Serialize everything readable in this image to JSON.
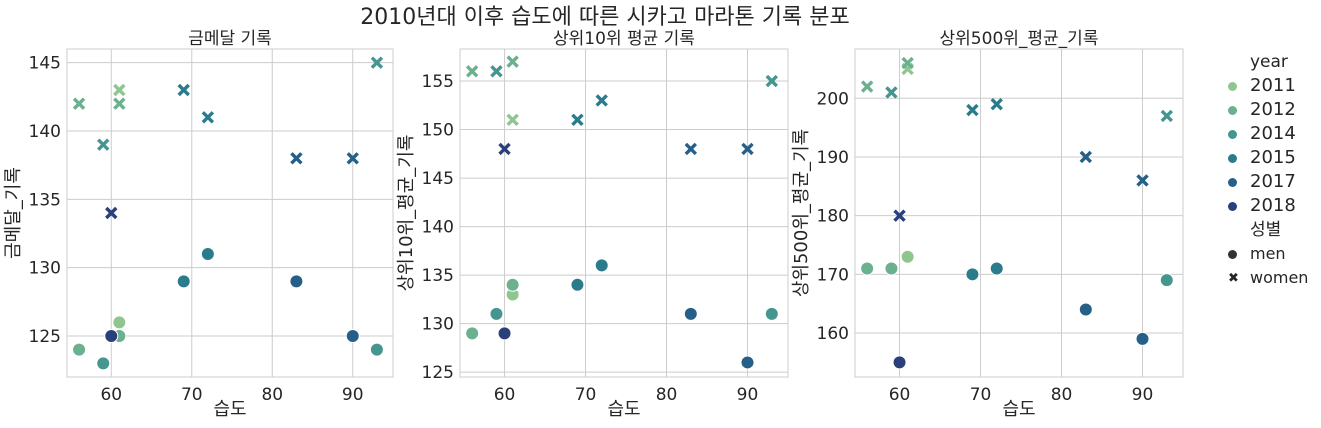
{
  "chart_data": {
    "suptitle": "2010년대 이후 습도에 따른 시카고 마라톤 기록 분포",
    "type": "scatter",
    "hue_title": "year",
    "style_title": "성별",
    "palette": {
      "2011": "#8fc58f",
      "2012": "#6bb08f",
      "2014": "#44968f",
      "2015": "#2a7c8c",
      "2017": "#265f88",
      "2018": "#2b3f7a"
    },
    "years": [
      "2011",
      "2012",
      "2014",
      "2015",
      "2017",
      "2018"
    ],
    "genders": [
      {
        "value": "men",
        "marker": "circle"
      },
      {
        "value": "women",
        "marker": "x"
      }
    ],
    "charts": [
      {
        "title": "금메달 기록",
        "xlabel": "습도",
        "ylabel": "금메달_기록",
        "xlim": [
          54.5,
          95
        ],
        "ylim": [
          122,
          146
        ],
        "xticks": [
          60,
          70,
          80,
          90
        ],
        "yticks": [
          125,
          130,
          135,
          140,
          145
        ],
        "points": [
          {
            "x": 61,
            "y": 126,
            "year": "2011",
            "gender": "men"
          },
          {
            "x": 61,
            "y": 143,
            "year": "2011",
            "gender": "women"
          },
          {
            "x": 56,
            "y": 124,
            "year": "2012",
            "gender": "men"
          },
          {
            "x": 61,
            "y": 125,
            "year": "2012",
            "gender": "men"
          },
          {
            "x": 56,
            "y": 142,
            "year": "2012",
            "gender": "women"
          },
          {
            "x": 61,
            "y": 142,
            "year": "2012",
            "gender": "women"
          },
          {
            "x": 59,
            "y": 123,
            "year": "2014",
            "gender": "men"
          },
          {
            "x": 93,
            "y": 124,
            "year": "2014",
            "gender": "men"
          },
          {
            "x": 59,
            "y": 139,
            "year": "2014",
            "gender": "women"
          },
          {
            "x": 93,
            "y": 145,
            "year": "2014",
            "gender": "women"
          },
          {
            "x": 69,
            "y": 129,
            "year": "2015",
            "gender": "men"
          },
          {
            "x": 72,
            "y": 131,
            "year": "2015",
            "gender": "men"
          },
          {
            "x": 69,
            "y": 143,
            "year": "2015",
            "gender": "women"
          },
          {
            "x": 72,
            "y": 141,
            "year": "2015",
            "gender": "women"
          },
          {
            "x": 83,
            "y": 129,
            "year": "2017",
            "gender": "men"
          },
          {
            "x": 90,
            "y": 125,
            "year": "2017",
            "gender": "men"
          },
          {
            "x": 83,
            "y": 138,
            "year": "2017",
            "gender": "women"
          },
          {
            "x": 90,
            "y": 138,
            "year": "2017",
            "gender": "women"
          },
          {
            "x": 60,
            "y": 125,
            "year": "2018",
            "gender": "men"
          },
          {
            "x": 60,
            "y": 134,
            "year": "2018",
            "gender": "women"
          }
        ]
      },
      {
        "title": "상위10위 평균 기록",
        "xlabel": "습도",
        "ylabel": "상위10위_평균_기록",
        "xlim": [
          54.5,
          95
        ],
        "ylim": [
          124.5,
          158.3
        ],
        "xticks": [
          60,
          70,
          80,
          90
        ],
        "yticks": [
          125,
          130,
          135,
          140,
          145,
          150,
          155
        ],
        "points": [
          {
            "x": 61,
            "y": 133,
            "year": "2011",
            "gender": "men"
          },
          {
            "x": 61,
            "y": 151,
            "year": "2011",
            "gender": "women"
          },
          {
            "x": 56,
            "y": 129,
            "year": "2012",
            "gender": "men"
          },
          {
            "x": 61,
            "y": 134,
            "year": "2012",
            "gender": "men"
          },
          {
            "x": 56,
            "y": 156,
            "year": "2012",
            "gender": "women"
          },
          {
            "x": 61,
            "y": 157,
            "year": "2012",
            "gender": "women"
          },
          {
            "x": 59,
            "y": 131,
            "year": "2014",
            "gender": "men"
          },
          {
            "x": 93,
            "y": 131,
            "year": "2014",
            "gender": "men"
          },
          {
            "x": 59,
            "y": 156,
            "year": "2014",
            "gender": "women"
          },
          {
            "x": 93,
            "y": 155,
            "year": "2014",
            "gender": "women"
          },
          {
            "x": 69,
            "y": 134,
            "year": "2015",
            "gender": "men"
          },
          {
            "x": 72,
            "y": 136,
            "year": "2015",
            "gender": "men"
          },
          {
            "x": 69,
            "y": 151,
            "year": "2015",
            "gender": "women"
          },
          {
            "x": 72,
            "y": 153,
            "year": "2015",
            "gender": "women"
          },
          {
            "x": 83,
            "y": 131,
            "year": "2017",
            "gender": "men"
          },
          {
            "x": 90,
            "y": 126,
            "year": "2017",
            "gender": "men"
          },
          {
            "x": 83,
            "y": 148,
            "year": "2017",
            "gender": "women"
          },
          {
            "x": 90,
            "y": 148,
            "year": "2017",
            "gender": "women"
          },
          {
            "x": 60,
            "y": 129,
            "year": "2018",
            "gender": "men"
          },
          {
            "x": 60,
            "y": 148,
            "year": "2018",
            "gender": "women"
          }
        ]
      },
      {
        "title": "상위500위_평균_기록",
        "xlabel": "습도",
        "ylabel": "상위500위_평균_기록",
        "xlim": [
          54.5,
          95
        ],
        "ylim": [
          152.5,
          208.4
        ],
        "xticks": [
          60,
          70,
          80,
          90
        ],
        "yticks": [
          160,
          170,
          180,
          190,
          200
        ],
        "points": [
          {
            "x": 61,
            "y": 173,
            "year": "2011",
            "gender": "men"
          },
          {
            "x": 61,
            "y": 205,
            "year": "2011",
            "gender": "women"
          },
          {
            "x": 56,
            "y": 171,
            "year": "2012",
            "gender": "men"
          },
          {
            "x": 59,
            "y": 171,
            "year": "2012",
            "gender": "men"
          },
          {
            "x": 56,
            "y": 202,
            "year": "2012",
            "gender": "women"
          },
          {
            "x": 61,
            "y": 206,
            "year": "2012",
            "gender": "women"
          },
          {
            "x": 59,
            "y": 201,
            "year": "2014",
            "gender": "women"
          },
          {
            "x": 93,
            "y": 169,
            "year": "2014",
            "gender": "men"
          },
          {
            "x": 93,
            "y": 197,
            "year": "2014",
            "gender": "women"
          },
          {
            "x": 69,
            "y": 170,
            "year": "2015",
            "gender": "men"
          },
          {
            "x": 72,
            "y": 171,
            "year": "2015",
            "gender": "men"
          },
          {
            "x": 69,
            "y": 198,
            "year": "2015",
            "gender": "women"
          },
          {
            "x": 72,
            "y": 199,
            "year": "2015",
            "gender": "women"
          },
          {
            "x": 83,
            "y": 164,
            "year": "2017",
            "gender": "men"
          },
          {
            "x": 90,
            "y": 159,
            "year": "2017",
            "gender": "men"
          },
          {
            "x": 83,
            "y": 190,
            "year": "2017",
            "gender": "women"
          },
          {
            "x": 90,
            "y": 186,
            "year": "2017",
            "gender": "women"
          },
          {
            "x": 60,
            "y": 155,
            "year": "2018",
            "gender": "men"
          },
          {
            "x": 60,
            "y": 180,
            "year": "2018",
            "gender": "women"
          }
        ]
      }
    ]
  }
}
